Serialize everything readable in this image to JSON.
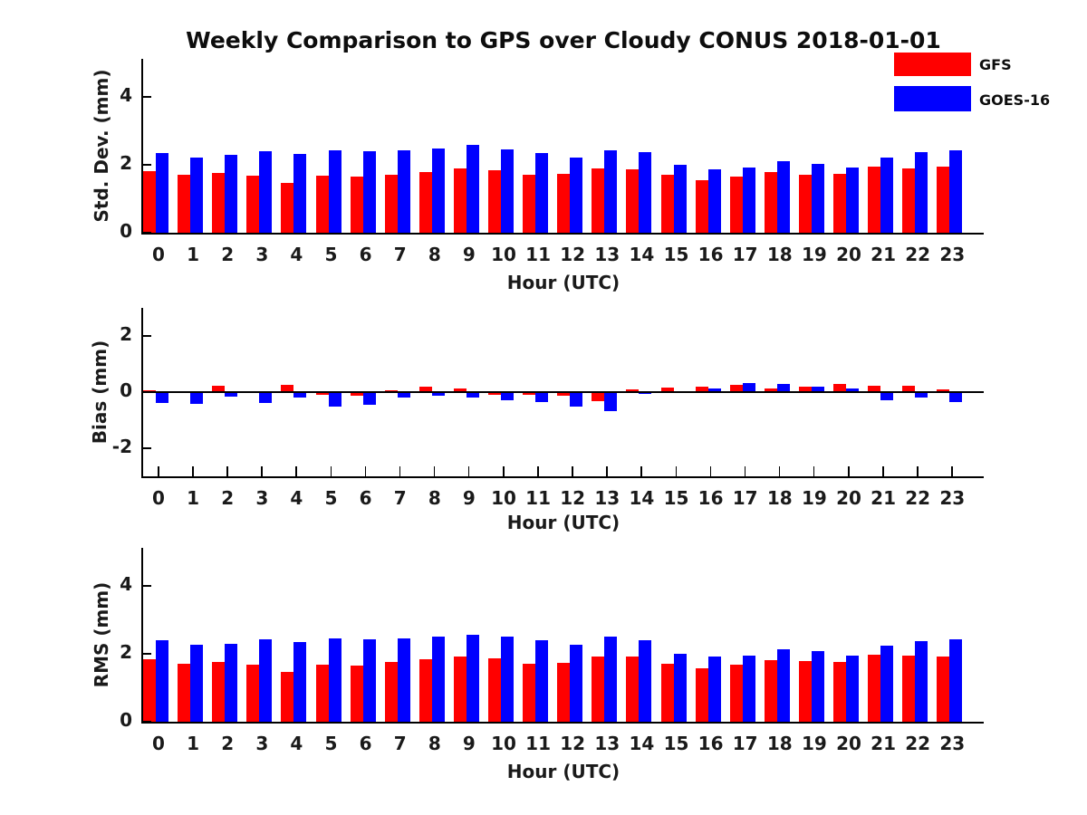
{
  "title": "Weekly Comparison to GPS over Cloudy CONUS 2018-01-01",
  "legend": {
    "position": "top-right",
    "items": [
      {
        "label": "GFS",
        "color": "#ff0000"
      },
      {
        "label": "GOES-16",
        "color": "#0000ff"
      }
    ]
  },
  "colors": {
    "gfs": "#ff0000",
    "goes16": "#0000ff",
    "axis": "#000000",
    "background": "#ffffff"
  },
  "chart_data": [
    {
      "type": "bar",
      "title": "",
      "ylabel": "Std. Dev. (mm)",
      "xlabel": "Hour (UTC)",
      "categories": [
        "0",
        "1",
        "2",
        "3",
        "4",
        "5",
        "6",
        "7",
        "8",
        "9",
        "10",
        "11",
        "12",
        "13",
        "14",
        "15",
        "16",
        "17",
        "18",
        "19",
        "20",
        "21",
        "22",
        "23"
      ],
      "series": [
        {
          "name": "GFS",
          "color": "#ff0000",
          "values": [
            1.81,
            1.72,
            1.75,
            1.69,
            1.47,
            1.69,
            1.66,
            1.72,
            1.8,
            1.9,
            1.84,
            1.72,
            1.74,
            1.89,
            1.88,
            1.71,
            1.54,
            1.66,
            1.8,
            1.72,
            1.74,
            1.96,
            1.9,
            1.94
          ]
        },
        {
          "name": "GOES-16",
          "color": "#0000ff",
          "values": [
            2.36,
            2.22,
            2.29,
            2.41,
            2.33,
            2.42,
            2.4,
            2.44,
            2.48,
            2.58,
            2.46,
            2.36,
            2.22,
            2.42,
            2.38,
            1.99,
            1.88,
            1.91,
            2.11,
            2.04,
            1.91,
            2.21,
            2.37,
            2.44
          ]
        }
      ],
      "ylim": [
        0,
        5.12
      ],
      "yticks": [
        4,
        2,
        0
      ],
      "grid": false,
      "legend_position": "upper right (figure)"
    },
    {
      "type": "bar",
      "title": "",
      "ylabel": "Bias (mm)",
      "xlabel": "Hour (UTC)",
      "categories": [
        "0",
        "1",
        "2",
        "3",
        "4",
        "5",
        "6",
        "7",
        "8",
        "9",
        "10",
        "11",
        "12",
        "13",
        "14",
        "15",
        "16",
        "17",
        "18",
        "19",
        "20",
        "21",
        "22",
        "23"
      ],
      "series": [
        {
          "name": "GFS",
          "color": "#ff0000",
          "values": [
            0.08,
            0.03,
            0.22,
            -0.04,
            0.27,
            -0.1,
            -0.12,
            0.05,
            0.18,
            0.12,
            -0.1,
            -0.1,
            -0.12,
            -0.31,
            0.1,
            0.15,
            0.18,
            0.26,
            0.12,
            0.18,
            0.28,
            0.22,
            0.24,
            0.11
          ]
        },
        {
          "name": "GOES-16",
          "color": "#0000ff",
          "values": [
            -0.4,
            -0.42,
            -0.15,
            -0.4,
            -0.18,
            -0.5,
            -0.45,
            -0.2,
            -0.12,
            -0.2,
            -0.28,
            -0.34,
            -0.53,
            -0.68,
            -0.07,
            0.0,
            0.13,
            0.33,
            0.3,
            0.19,
            0.14,
            -0.28,
            -0.2,
            -0.34
          ]
        }
      ],
      "ylim": [
        -3,
        3
      ],
      "yticks": [
        2,
        0,
        -2
      ],
      "grid": false,
      "zero_line": true
    },
    {
      "type": "bar",
      "title": "",
      "ylabel": "RMS (mm)",
      "xlabel": "Hour (UTC)",
      "categories": [
        "0",
        "1",
        "2",
        "3",
        "4",
        "5",
        "6",
        "7",
        "8",
        "9",
        "10",
        "11",
        "12",
        "13",
        "14",
        "15",
        "16",
        "17",
        "18",
        "19",
        "20",
        "21",
        "22",
        "23"
      ],
      "series": [
        {
          "name": "GFS",
          "color": "#ff0000",
          "values": [
            1.84,
            1.72,
            1.76,
            1.69,
            1.48,
            1.69,
            1.66,
            1.76,
            1.83,
            1.91,
            1.86,
            1.72,
            1.74,
            1.92,
            1.91,
            1.72,
            1.57,
            1.69,
            1.82,
            1.78,
            1.77,
            1.97,
            1.96,
            1.93
          ]
        },
        {
          "name": "GOES-16",
          "color": "#0000ff",
          "values": [
            2.4,
            2.27,
            2.3,
            2.43,
            2.35,
            2.45,
            2.43,
            2.45,
            2.5,
            2.57,
            2.5,
            2.41,
            2.27,
            2.52,
            2.41,
            2.01,
            1.91,
            1.96,
            2.14,
            2.07,
            1.94,
            2.23,
            2.38,
            2.44
          ]
        }
      ],
      "ylim": [
        0,
        5.12
      ],
      "yticks": [
        4,
        2,
        0
      ],
      "grid": false
    }
  ]
}
